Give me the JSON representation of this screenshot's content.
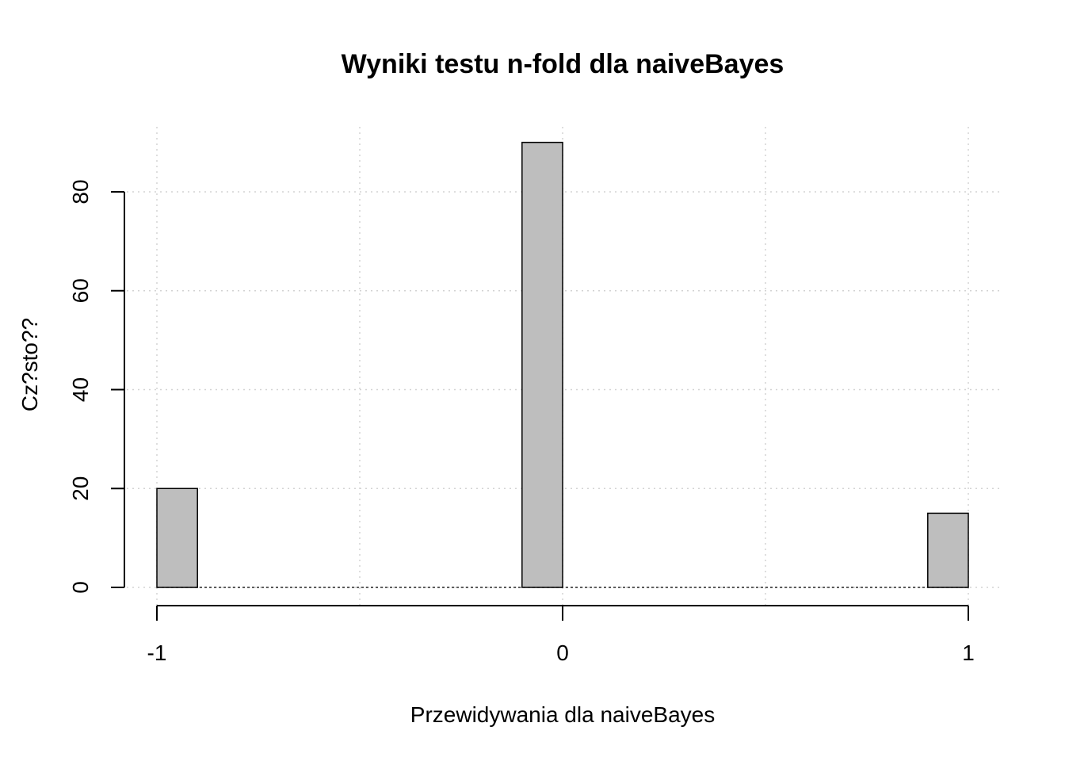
{
  "chart_data": {
    "type": "bar",
    "title": "Wyniki testu n-fold dla naiveBayes",
    "xlabel": "Przewidywania dla naiveBayes",
    "ylabel": "Cz?sto??",
    "bins": [
      {
        "from": -1.0,
        "to": -0.9,
        "value": 20
      },
      {
        "from": -0.1,
        "to": 0.0,
        "value": 90
      },
      {
        "from": 0.9,
        "to": 1.0,
        "value": 15
      }
    ],
    "xlim": [
      -1,
      1
    ],
    "ylim": [
      0,
      90
    ],
    "xticks": [
      "-1",
      "0",
      "1"
    ],
    "yticks": [
      "0",
      "20",
      "40",
      "60",
      "80"
    ],
    "grid": true,
    "colors": {
      "bar_fill": "#bebebe",
      "bar_stroke": "#000000",
      "grid": "#d3d3d3"
    }
  }
}
